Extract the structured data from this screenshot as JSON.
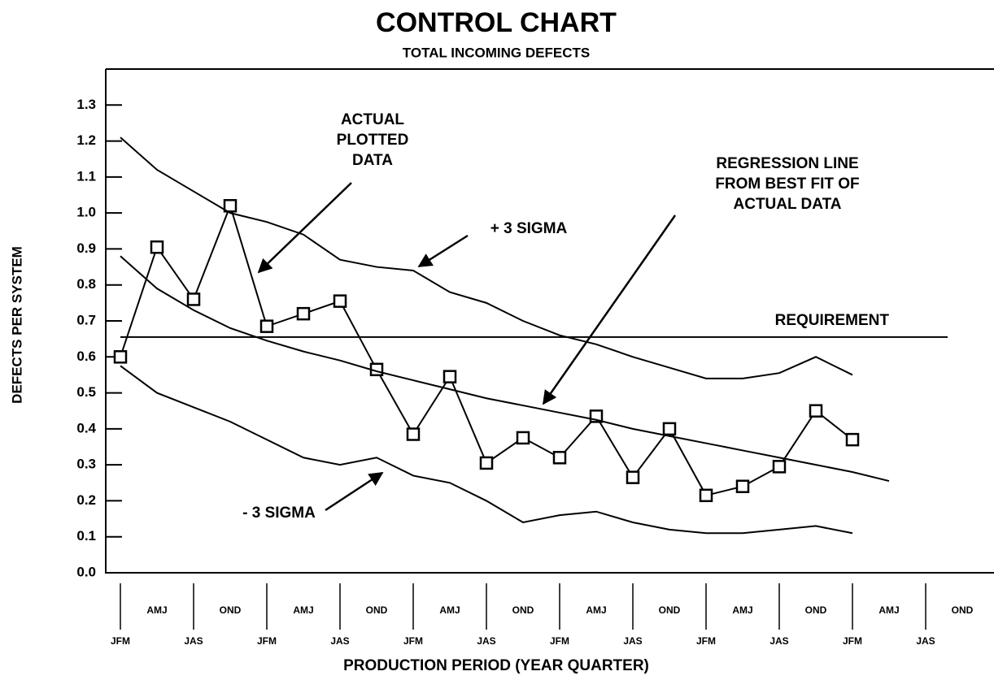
{
  "chart_data": {
    "type": "line",
    "title": "CONTROL CHART",
    "subtitle": "TOTAL INCOMING DEFECTS",
    "x_label": "PRODUCTION PERIOD (YEAR QUARTER)",
    "y_label": "DEFECTS PER SYSTEM",
    "categories": [
      "JFM",
      "AMJ",
      "JAS",
      "OND",
      "JFM",
      "AMJ",
      "JAS",
      "OND",
      "JFM",
      "AMJ",
      "JAS",
      "OND",
      "JFM",
      "AMJ",
      "JAS",
      "OND",
      "JFM",
      "AMJ",
      "JAS",
      "OND",
      "JFM",
      "AMJ",
      "JAS",
      "OND"
    ],
    "ylim": [
      0,
      1.4
    ],
    "yticks": [
      {
        "value": 0,
        "label": "0.0"
      },
      0.1,
      0.2,
      0.3,
      0.4,
      0.5,
      0.6,
      0.7,
      0.8,
      0.9,
      {
        "value": 1,
        "label": "1.0"
      },
      1.1,
      1.2,
      1.3
    ],
    "color": "#000000",
    "series": [
      {
        "values": [
          0.6,
          0.905,
          0.76,
          1.02,
          0.685,
          0.72,
          0.755,
          0.565,
          0.385,
          0.545,
          0.305,
          0.375,
          0.32,
          0.435,
          0.265,
          0.4,
          0.215,
          0.24,
          0.295,
          0.45,
          0.37,
          null,
          null,
          null
        ],
        "markers": true
      },
      {
        "values": [
          1.21,
          1.12,
          1.06,
          1.0,
          0.975,
          0.94,
          0.87,
          0.85,
          0.84,
          0.78,
          0.75,
          0.7,
          0.66,
          0.635,
          0.6,
          0.57,
          0.54,
          0.54,
          0.555,
          0.6,
          0.55,
          null,
          null,
          null
        ],
        "markers": false
      },
      {
        "values": [
          0.575,
          0.5,
          0.46,
          0.42,
          0.37,
          0.32,
          0.3,
          0.32,
          0.27,
          0.25,
          0.2,
          0.14,
          0.16,
          0.17,
          0.14,
          0.12,
          0.11,
          0.11,
          0.12,
          0.13,
          0.11,
          null,
          null,
          null
        ],
        "markers": false
      },
      {
        "values": [
          0.88,
          0.79,
          0.73,
          0.68,
          0.645,
          0.615,
          0.59,
          0.56,
          0.535,
          0.51,
          0.485,
          0.465,
          0.445,
          0.425,
          0.4,
          0.38,
          0.36,
          0.34,
          0.32,
          0.3,
          0.28,
          0.255,
          null,
          null
        ],
        "markers": false
      }
    ],
    "requirement": {
      "value": 0.655,
      "label": "REQUIREMENT"
    },
    "annotations": [
      {
        "lines": [
          "ACTUAL",
          "PLOTTED",
          "DATA"
        ]
      },
      {
        "lines": [
          "+ 3 SIGMA"
        ]
      },
      {
        "lines": [
          "REGRESSION LINE",
          "FROM BEST FIT OF",
          "ACTUAL DATA"
        ]
      },
      {
        "lines": [
          "- 3 SIGMA"
        ]
      }
    ]
  }
}
